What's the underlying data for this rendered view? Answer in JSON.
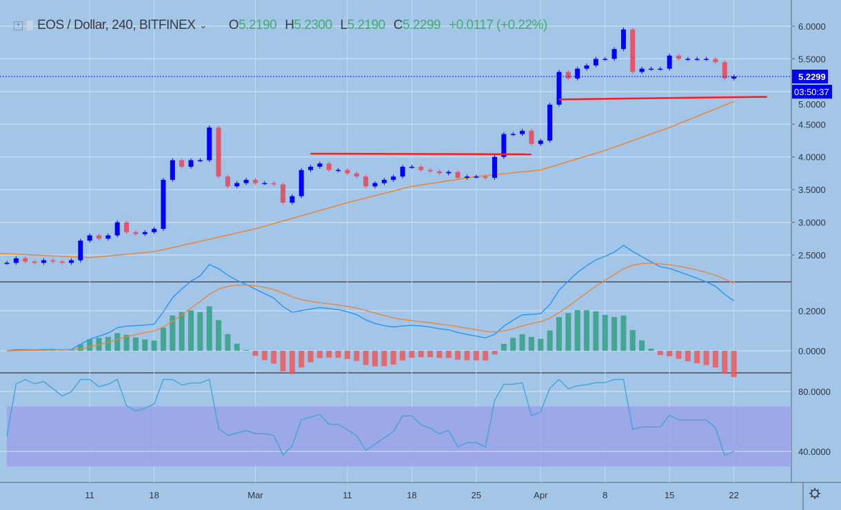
{
  "header": {
    "symbol": "EOS / Dollar, 240, BITFINEX",
    "open_label": "O",
    "open": "5.2190",
    "high_label": "H",
    "high": "5.2300",
    "low_label": "L",
    "low": "5.2190",
    "close_label": "C",
    "close": "5.2299",
    "change": "+0.0117 (+0.22%)"
  },
  "price_labels": {
    "last": "5.2299",
    "countdown": "03:50:37"
  },
  "icons": {
    "expand": "plus-square-icon",
    "dropdown": "chevron-down-icon",
    "settings": "gear-icon"
  },
  "colors": {
    "background": "#a3c6e8",
    "up": "#0000ff",
    "down": "#e0566a",
    "ma": "#e8863a",
    "support": "#ff1a1a",
    "macd": "#2196f3",
    "signal": "#e8863a",
    "rsi": "#3aa3d8",
    "rsi_band": "#9b9ee8"
  },
  "chart_data": [
    {
      "type": "candlestick",
      "title": "",
      "x_ticks": [
        "11",
        "18",
        "Mar",
        "11",
        "18",
        "25",
        "Apr",
        "8",
        "15",
        "22"
      ],
      "y_ticks": [
        "2.5000",
        "3.0000",
        "3.5000",
        "4.0000",
        "4.5000",
        "5.0000",
        "5.5000",
        "6.0000"
      ],
      "ylim": [
        2.1,
        6.2
      ],
      "dates": [
        "Feb 2",
        "Feb 3",
        "Feb 4",
        "Feb 5",
        "Feb 6",
        "Feb 7",
        "Feb 8",
        "Feb 9",
        "Feb 10",
        "Feb 11",
        "Feb 12",
        "Feb 13",
        "Feb 14",
        "Feb 15",
        "Feb 16",
        "Feb 17",
        "Feb 18",
        "Feb 19",
        "Feb 20",
        "Feb 21",
        "Feb 22",
        "Feb 23",
        "Feb 24",
        "Feb 25",
        "Feb 26",
        "Feb 27",
        "Feb 28",
        "Mar 1",
        "Mar 2",
        "Mar 3",
        "Mar 4",
        "Mar 5",
        "Mar 6",
        "Mar 7",
        "Mar 8",
        "Mar 9",
        "Mar 10",
        "Mar 11",
        "Mar 12",
        "Mar 13",
        "Mar 14",
        "Mar 15",
        "Mar 16",
        "Mar 17",
        "Mar 18",
        "Mar 19",
        "Mar 20",
        "Mar 21",
        "Mar 22",
        "Mar 23",
        "Mar 24",
        "Mar 25",
        "Mar 26",
        "Mar 27",
        "Mar 28",
        "Mar 29",
        "Mar 30",
        "Mar 31",
        "Apr 1",
        "Apr 2",
        "Apr 3",
        "Apr 4",
        "Apr 5",
        "Apr 6",
        "Apr 7",
        "Apr 8",
        "Apr 9",
        "Apr 10",
        "Apr 11",
        "Apr 12",
        "Apr 13",
        "Apr 14",
        "Apr 15",
        "Apr 16",
        "Apr 17",
        "Apr 18",
        "Apr 19",
        "Apr 20",
        "Apr 21",
        "Apr 22"
      ],
      "close": [
        2.38,
        2.45,
        2.4,
        2.38,
        2.42,
        2.4,
        2.38,
        2.42,
        2.72,
        2.8,
        2.75,
        2.8,
        3.0,
        2.85,
        2.82,
        2.85,
        2.9,
        3.65,
        3.95,
        3.85,
        3.95,
        3.95,
        4.45,
        3.7,
        3.55,
        3.6,
        3.65,
        3.6,
        3.6,
        3.58,
        3.3,
        3.4,
        3.8,
        3.85,
        3.9,
        3.8,
        3.8,
        3.75,
        3.7,
        3.55,
        3.6,
        3.65,
        3.7,
        3.85,
        3.85,
        3.8,
        3.78,
        3.75,
        3.77,
        3.68,
        3.7,
        3.7,
        3.68,
        4.0,
        4.35,
        4.35,
        4.4,
        4.2,
        4.25,
        4.8,
        5.3,
        5.2,
        5.35,
        5.4,
        5.5,
        5.5,
        5.65,
        5.95,
        5.3,
        5.35,
        5.35,
        5.35,
        5.55,
        5.5,
        5.5,
        5.5,
        5.5,
        5.45,
        5.2,
        5.23
      ],
      "moving_average": {
        "dates": [
          "Feb 2",
          "Feb 11",
          "Feb 18",
          "Mar 1",
          "Mar 11",
          "Mar 18",
          "Mar 25",
          "Apr 1",
          "Apr 8",
          "Apr 15",
          "Apr 22"
        ],
        "values": [
          2.52,
          2.46,
          2.55,
          2.9,
          3.3,
          3.55,
          3.7,
          3.8,
          4.1,
          4.45,
          4.85
        ]
      },
      "support_lines": [
        {
          "from": "Mar 7",
          "to": "Mar 31",
          "values": [
            4.05,
            4.04
          ]
        },
        {
          "from": "Apr 3",
          "to": "Apr 25",
          "values": [
            4.88,
            4.92
          ]
        }
      ],
      "last_price": 5.2299
    },
    {
      "type": "macd",
      "y_ticks": [
        "0.0000",
        "0.2000"
      ],
      "ylim": [
        -0.12,
        0.34
      ]
    },
    {
      "type": "rsi",
      "y_ticks": [
        "40.0000",
        "80.0000"
      ],
      "ylim": [
        22,
        95
      ],
      "band": [
        30,
        70
      ]
    }
  ]
}
